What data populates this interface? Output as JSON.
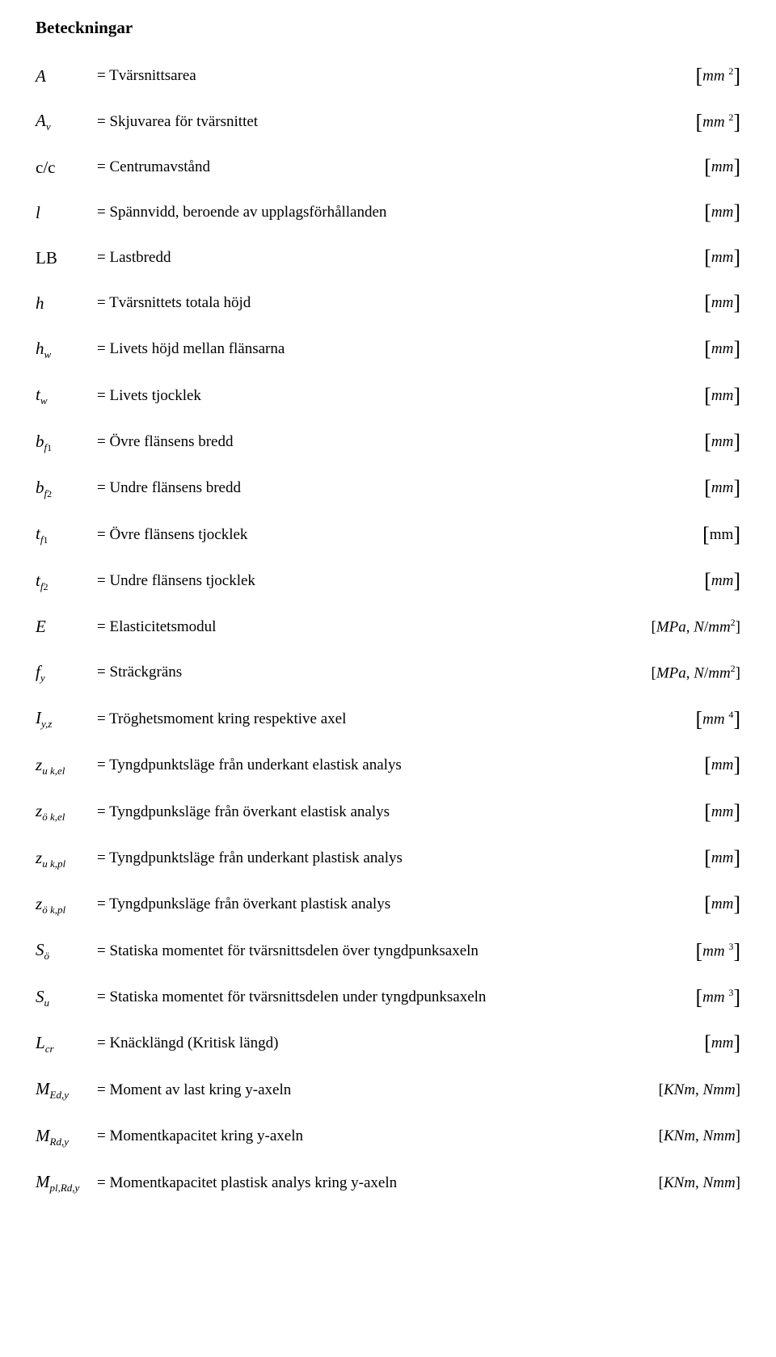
{
  "heading": "Beteckningar",
  "rows": [
    {
      "symbol_html": "A",
      "desc": "= Tvärsnittsarea",
      "unit_html": "<span class='br'>[</span><span class='it'>mm</span>&nbsp;<span class='sup'>2</span><span class='br'>]</span>"
    },
    {
      "symbol_html": "A<span class='sub'>v</span>",
      "desc": "= Skjuvarea för tvärsnittet",
      "unit_html": "<span class='br'>[</span><span class='it'>mm</span>&nbsp;<span class='sup'>2</span><span class='br'>]</span>"
    },
    {
      "symbol_html": "<span class='roman'>c/c</span>",
      "desc": "= Centrumavstånd",
      "unit_html": "<span class='br'>[</span><span class='it'>mm</span><span class='br'>]</span>"
    },
    {
      "symbol_html": "l",
      "desc": "= Spännvidd, beroende av upplagsförhållanden",
      "unit_html": "<span class='br'>[</span><span class='it'>mm</span><span class='br'>]</span>"
    },
    {
      "symbol_html": "<span class='roman'>LB</span>",
      "desc": "= Lastbredd",
      "unit_html": "<span class='br'>[</span><span class='it'>mm</span><span class='br'>]</span>"
    },
    {
      "symbol_html": "h",
      "desc": "= Tvärsnittets totala höjd",
      "unit_html": "<span class='br'>[</span><span class='it'>mm</span><span class='br'>]</span>"
    },
    {
      "symbol_html": "h<span class='sub'>w</span>",
      "desc": "= Livets höjd mellan flänsarna",
      "unit_html": "<span class='br'>[</span><span class='it'>mm</span><span class='br'>]</span>"
    },
    {
      "symbol_html": "t<span class='sub'>w</span>",
      "desc": "= Livets tjocklek",
      "unit_html": "<span class='br'>[</span><span class='it'>mm</span><span class='br'>]</span>"
    },
    {
      "symbol_html": "b<span class='sub'>f</span><span class='subpl'>1</span>",
      "desc": "= Övre flänsens bredd",
      "unit_html": "<span class='br'>[</span><span class='it'>mm</span><span class='br'>]</span>"
    },
    {
      "symbol_html": "b<span class='sub'>f</span><span class='subpl'>2</span>",
      "desc": "= Undre flänsens bredd",
      "unit_html": "<span class='br'>[</span><span class='it'>mm</span><span class='br'>]</span>"
    },
    {
      "symbol_html": "t<span class='sub'>f</span><span class='subpl'>1</span>",
      "desc": "= Övre flänsens tjocklek",
      "unit_html": "<span class='br'>[</span><span style='font-style:normal'>mm</span><span class='br'>]</span>"
    },
    {
      "symbol_html": "t<span class='sub'>f</span><span class='subpl'>2</span>",
      "desc": "= Undre flänsens tjocklek",
      "unit_html": "<span class='br'>[</span><span class='it'>mm</span><span class='br'>]</span>"
    },
    {
      "symbol_html": "E",
      "desc": "= Elasticitetsmodul",
      "unit_html": "[<span class='it'>MPa</span>, <span class='it'>N</span>/<span class='it'>mm</span><span class='sup'>2</span>]"
    },
    {
      "symbol_html": "f<span class='sub'>y</span>",
      "desc": "= Sträckgräns",
      "unit_html": "[<span class='it'>MPa</span>, <span class='it'>N</span>/<span class='it'>mm</span><span class='sup'>2</span>]"
    },
    {
      "symbol_html": "I<span class='sub'>y,z</span>",
      "desc": "= Tröghetsmoment kring respektive axel",
      "unit_html": "<span class='br'>[</span><span class='it'>mm</span>&nbsp;<span class='sup'>4</span><span class='br'>]</span>"
    },
    {
      "symbol_html": "z<span class='sub'>u k,el</span>",
      "desc": "= Tyngdpunktsläge från underkant elastisk analys",
      "unit_html": "<span class='br'>[</span><span class='it'>mm</span><span class='br'>]</span>"
    },
    {
      "symbol_html": "z<span class='sub'>ö k,el</span>",
      "desc": "= Tyngdpunksläge från överkant elastisk analys",
      "unit_html": "<span class='br'>[</span><span class='it'>mm</span><span class='br'>]</span>"
    },
    {
      "symbol_html": "z<span class='sub'>u k,pl</span>",
      "desc": "= Tyngdpunktsläge från underkant plastisk analys",
      "unit_html": "<span class='br'>[</span><span class='it'>mm</span><span class='br'>]</span>"
    },
    {
      "symbol_html": "z<span class='sub'>ö k,pl</span>",
      "desc": "= Tyngdpunksläge från överkant plastisk analys",
      "unit_html": "<span class='br'>[</span><span class='it'>mm</span><span class='br'>]</span>"
    },
    {
      "symbol_html": "S<span class='sub'>ö</span>",
      "desc": "= Statiska momentet för tvärsnittsdelen över tyngdpunksaxeln",
      "unit_html": "<span class='br'>[</span><span class='it'>mm</span>&nbsp;<span class='sup'>3</span><span class='br'>]</span>"
    },
    {
      "symbol_html": "S<span class='sub'>u</span>",
      "desc": "= Statiska momentet för tvärsnittsdelen under tyngdpunksaxeln",
      "unit_html": "<span class='br'>[</span><span class='it'>mm</span>&nbsp;<span class='sup'>3</span><span class='br'>]</span>"
    },
    {
      "symbol_html": "L<span class='sub'>cr</span>",
      "desc": "= Knäcklängd (Kritisk längd)",
      "unit_html": "<span class='br'>[</span><span class='it'>mm</span><span class='br'>]</span>"
    },
    {
      "symbol_html": "M<span class='sub'>Ed,y</span>",
      "desc": "= Moment av last kring y-axeln",
      "unit_html": "[<span class='it'>KNm</span>, <span class='it'>Nmm</span>]"
    },
    {
      "symbol_html": "M<span class='sub'>Rd,y</span>",
      "desc": "= Momentkapacitet kring y-axeln",
      "unit_html": "[<span class='it'>KNm</span>, <span class='it'>Nmm</span>]"
    },
    {
      "symbol_html": "M<span class='sub'>pl,Rd,y</span>",
      "desc": "= Momentkapacitet plastisk analys kring y-axeln",
      "unit_html": "[<span class='it'>KNm</span>, <span class='it'>Nmm</span>]",
      "inline_desc": true
    }
  ]
}
